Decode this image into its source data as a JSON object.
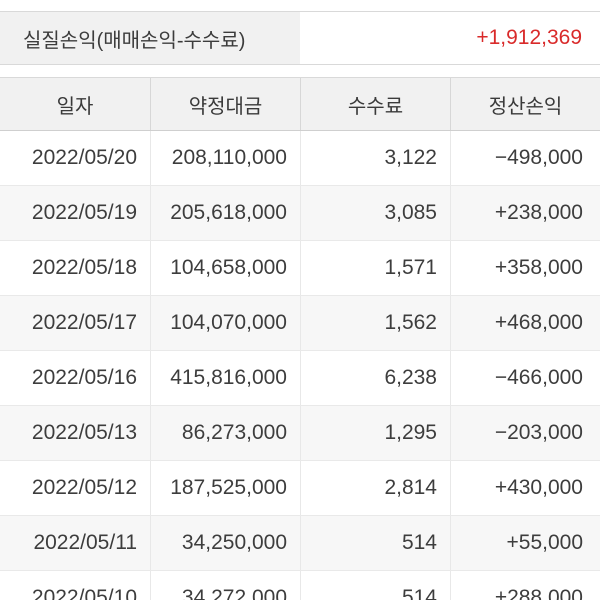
{
  "summary": {
    "label": "실질손익(매매손익-수수료)",
    "value": "+1,912,369"
  },
  "table": {
    "columns": [
      "일자",
      "약정대금",
      "수수료",
      "정산손익"
    ],
    "rows": [
      {
        "date": "2022/05/20",
        "amount": "208,110,000",
        "fee": "3,122",
        "pl": "−498,000"
      },
      {
        "date": "2022/05/19",
        "amount": "205,618,000",
        "fee": "3,085",
        "pl": "+238,000"
      },
      {
        "date": "2022/05/18",
        "amount": "104,658,000",
        "fee": "1,571",
        "pl": "+358,000"
      },
      {
        "date": "2022/05/17",
        "amount": "104,070,000",
        "fee": "1,562",
        "pl": "+468,000"
      },
      {
        "date": "2022/05/16",
        "amount": "415,816,000",
        "fee": "6,238",
        "pl": "−466,000"
      },
      {
        "date": "2022/05/13",
        "amount": "86,273,000",
        "fee": "1,295",
        "pl": "−203,000"
      },
      {
        "date": "2022/05/12",
        "amount": "187,525,000",
        "fee": "2,814",
        "pl": "+430,000"
      },
      {
        "date": "2022/05/11",
        "amount": "34,250,000",
        "fee": "514",
        "pl": "+55,000"
      },
      {
        "date": "2022/05/10",
        "amount": "34,272,000",
        "fee": "514",
        "pl": "+288,000"
      }
    ]
  },
  "colors": {
    "profit": "#d92a2a",
    "loss": "#0f56ac",
    "header_bg": "#f1f1f1",
    "alt_row_bg": "#f7f7f7"
  }
}
